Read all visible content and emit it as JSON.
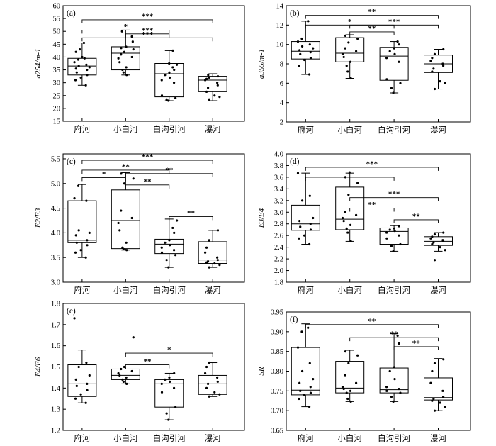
{
  "chart_data": [
    {
      "type": "box",
      "panel": "(a)",
      "ylabel": "a254/m-1",
      "ylim": [
        15,
        60
      ],
      "yticks": [
        15,
        20,
        25,
        30,
        35,
        40,
        45,
        50,
        55,
        60
      ],
      "categories": [
        "府河",
        "小白河",
        "白沟引河",
        "瀑河"
      ],
      "boxes": [
        {
          "min": 29,
          "q1": 33,
          "median": 36.5,
          "q3": 39.5,
          "max": 45.5,
          "points": [
            29,
            31,
            32,
            33,
            34,
            35,
            35.5,
            36,
            36.5,
            37,
            38,
            39,
            39.5,
            40,
            42,
            43,
            45.5
          ]
        },
        {
          "min": 33,
          "q1": 35,
          "median": 41.5,
          "q3": 44,
          "max": 50.5,
          "points": [
            33,
            34,
            35,
            36,
            38,
            39.5,
            40,
            41,
            42,
            43,
            43.5,
            44,
            46,
            48,
            50
          ]
        },
        {
          "min": 23,
          "q1": 24.5,
          "median": 33.5,
          "q3": 37.5,
          "max": 42.5,
          "points": [
            23,
            23.5,
            24,
            25,
            30,
            31,
            32,
            33,
            34,
            35,
            36,
            37,
            37.5,
            42.5
          ]
        },
        {
          "min": 23,
          "q1": 26.5,
          "median": 31,
          "q3": 32.5,
          "max": 33.5,
          "points": [
            23.5,
            24.5,
            25,
            26.5,
            28,
            29,
            30,
            31,
            31.5,
            32,
            32.5,
            33
          ]
        }
      ],
      "significance": [
        {
          "from": 1,
          "to": 4,
          "label": "***",
          "y": 54.5
        },
        {
          "from": 1,
          "to": 3,
          "label": "*",
          "y": 50.5
        },
        {
          "from": 2,
          "to": 3,
          "label": "***",
          "y": 49
        },
        {
          "from": 1,
          "to": 4,
          "label": "***",
          "y": 47.5
        }
      ]
    },
    {
      "type": "box",
      "panel": "(b)",
      "ylabel": "a355/m-1",
      "ylim": [
        2,
        14
      ],
      "yticks": [
        2,
        4,
        6,
        8,
        10,
        12,
        14
      ],
      "categories": [
        "府河",
        "小白河",
        "白沟引河",
        "瀑河"
      ],
      "boxes": [
        {
          "min": 6.9,
          "q1": 8.5,
          "median": 9.3,
          "q3": 10.3,
          "max": 12.4,
          "points": [
            6.9,
            7.8,
            8.4,
            8.6,
            9.0,
            9.2,
            9.4,
            9.6,
            9.8,
            10.0,
            10.3,
            10.6,
            12.4
          ]
        },
        {
          "min": 6.5,
          "q1": 8.2,
          "median": 9.1,
          "q3": 10.7,
          "max": 11.0,
          "points": [
            6.5,
            7.2,
            7.8,
            8.2,
            8.7,
            9.0,
            9.3,
            9.6,
            10.2,
            10.6,
            10.9
          ]
        },
        {
          "min": 5.0,
          "q1": 6.3,
          "median": 8.8,
          "q3": 9.7,
          "max": 10.3,
          "points": [
            5.0,
            5.5,
            6.0,
            6.4,
            8.2,
            8.6,
            9.0,
            9.3,
            9.6,
            10.0,
            10.3
          ]
        },
        {
          "min": 5.4,
          "q1": 7.1,
          "median": 8.0,
          "q3": 8.9,
          "max": 9.5,
          "points": [
            5.4,
            6.0,
            6.2,
            7.2,
            7.5,
            7.8,
            8.0,
            8.3,
            8.6,
            9.0,
            9.5
          ]
        }
      ],
      "significance": [
        {
          "from": 1,
          "to": 4,
          "label": "**",
          "y": 13.0
        },
        {
          "from": 1,
          "to": 3,
          "label": "*",
          "y": 12.0
        },
        {
          "from": 2,
          "to": 4,
          "label": "***",
          "y": 12.0
        },
        {
          "from": 2,
          "to": 3,
          "label": "**",
          "y": 11.3
        }
      ]
    },
    {
      "type": "box",
      "panel": "(c)",
      "ylabel": "E2/E3",
      "ylim": [
        3.0,
        5.6
      ],
      "yticks": [
        3.0,
        3.5,
        4.0,
        4.5,
        5.0,
        5.5
      ],
      "categories": [
        "府河",
        "小白河",
        "白沟引河",
        "瀑河"
      ],
      "boxes": [
        {
          "min": 3.5,
          "q1": 3.8,
          "median": 3.85,
          "q3": 4.65,
          "max": 4.98,
          "points": [
            3.5,
            3.6,
            3.65,
            3.75,
            3.8,
            3.85,
            3.95,
            4.0,
            4.05,
            4.65,
            4.7,
            4.95
          ]
        },
        {
          "min": 3.65,
          "q1": 3.68,
          "median": 4.25,
          "q3": 4.87,
          "max": 5.22,
          "points": [
            3.65,
            3.67,
            3.7,
            3.8,
            4.05,
            4.2,
            4.3,
            4.45,
            5.0,
            5.1,
            5.2
          ]
        },
        {
          "min": 3.3,
          "q1": 3.58,
          "median": 3.77,
          "q3": 3.87,
          "max": 4.28,
          "points": [
            3.3,
            3.45,
            3.55,
            3.6,
            3.65,
            3.7,
            3.75,
            3.8,
            3.85,
            4.0,
            4.1,
            4.25
          ]
        },
        {
          "min": 3.3,
          "q1": 3.38,
          "median": 3.45,
          "q3": 3.82,
          "max": 4.05,
          "points": [
            3.3,
            3.35,
            3.38,
            3.4,
            3.42,
            3.45,
            3.5,
            3.6,
            3.7,
            3.85,
            4.05
          ]
        }
      ],
      "significance": [
        {
          "from": 1,
          "to": 4,
          "label": "***",
          "y": 5.47
        },
        {
          "from": 1,
          "to": 3,
          "label": "**",
          "y": 5.27
        },
        {
          "from": 2,
          "to": 4,
          "label": "**",
          "y": 5.2
        },
        {
          "from": 1,
          "to": 2,
          "label": "*",
          "y": 5.12
        },
        {
          "from": 2,
          "to": 3,
          "label": "**",
          "y": 4.97
        },
        {
          "from": 3,
          "to": 4,
          "label": "**",
          "y": 4.33
        }
      ]
    },
    {
      "type": "box",
      "panel": "(d)",
      "ylabel": "E3/E4",
      "ylim": [
        1.8,
        4.0
      ],
      "yticks": [
        1.8,
        2.0,
        2.2,
        2.4,
        2.6,
        2.8,
        3.0,
        3.2,
        3.4,
        3.6,
        3.8,
        4.0
      ],
      "categories": [
        "府河",
        "小白河",
        "白沟引河",
        "瀑河"
      ],
      "boxes": [
        {
          "min": 2.45,
          "q1": 2.69,
          "median": 2.8,
          "q3": 3.12,
          "max": 3.67,
          "points": [
            2.45,
            2.55,
            2.6,
            2.7,
            2.75,
            2.8,
            2.85,
            2.9,
            3.2,
            3.28,
            3.67
          ]
        },
        {
          "min": 2.5,
          "q1": 2.7,
          "median": 2.88,
          "q3": 3.43,
          "max": 3.67,
          "points": [
            2.5,
            2.65,
            2.72,
            2.78,
            2.85,
            2.9,
            2.95,
            3.0,
            3.3,
            3.5,
            3.6
          ]
        },
        {
          "min": 2.33,
          "q1": 2.45,
          "median": 2.67,
          "q3": 2.73,
          "max": 2.77,
          "points": [
            2.33,
            2.42,
            2.45,
            2.55,
            2.6,
            2.65,
            2.68,
            2.7,
            2.72,
            2.76
          ]
        },
        {
          "min": 2.33,
          "q1": 2.43,
          "median": 2.5,
          "q3": 2.58,
          "max": 2.65,
          "points": [
            2.18,
            2.35,
            2.4,
            2.45,
            2.48,
            2.5,
            2.52,
            2.55,
            2.58,
            2.62,
            2.65
          ]
        }
      ],
      "significance": [
        {
          "from": 1,
          "to": 4,
          "label": "***",
          "y": 3.77
        },
        {
          "from": 1,
          "to": 3,
          "label": "*",
          "y": 3.6
        },
        {
          "from": 2,
          "to": 4,
          "label": "***",
          "y": 3.25
        },
        {
          "from": 2,
          "to": 3,
          "label": "**",
          "y": 3.07
        },
        {
          "from": 3,
          "to": 4,
          "label": "**",
          "y": 2.87
        }
      ]
    },
    {
      "type": "box",
      "panel": "(e)",
      "ylabel": "E4/E6",
      "ylim": [
        1.2,
        1.8
      ],
      "yticks": [
        1.2,
        1.3,
        1.4,
        1.5,
        1.6,
        1.7,
        1.8
      ],
      "categories": [
        "府河",
        "小白河",
        "白沟引河",
        "瀑河"
      ],
      "boxes": [
        {
          "min": 1.33,
          "q1": 1.36,
          "median": 1.42,
          "q3": 1.51,
          "max": 1.58,
          "points": [
            1.33,
            1.35,
            1.37,
            1.39,
            1.41,
            1.42,
            1.44,
            1.46,
            1.5,
            1.52,
            1.73
          ]
        },
        {
          "min": 1.42,
          "q1": 1.44,
          "median": 1.46,
          "q3": 1.49,
          "max": 1.5,
          "points": [
            1.42,
            1.43,
            1.44,
            1.45,
            1.46,
            1.47,
            1.48,
            1.49,
            1.5,
            1.64
          ]
        },
        {
          "min": 1.25,
          "q1": 1.31,
          "median": 1.42,
          "q3": 1.44,
          "max": 1.47,
          "points": [
            1.25,
            1.28,
            1.31,
            1.38,
            1.4,
            1.42,
            1.43,
            1.44,
            1.45,
            1.47
          ]
        },
        {
          "min": 1.36,
          "q1": 1.37,
          "median": 1.42,
          "q3": 1.46,
          "max": 1.52,
          "points": [
            1.36,
            1.37,
            1.38,
            1.4,
            1.42,
            1.43,
            1.45,
            1.47,
            1.5,
            1.52
          ]
        }
      ],
      "significance": [
        {
          "from": 2,
          "to": 4,
          "label": "*",
          "y": 1.565
        },
        {
          "from": 2,
          "to": 3,
          "label": "**",
          "y": 1.51
        }
      ]
    },
    {
      "type": "box",
      "panel": "(f)",
      "ylabel": "SR",
      "ylim": [
        0.65,
        0.95
      ],
      "yticks": [
        0.65,
        0.7,
        0.75,
        0.8,
        0.85,
        0.9,
        0.95
      ],
      "categories": [
        "府河",
        "小白河",
        "白沟引河",
        "瀑河"
      ],
      "boxes": [
        {
          "min": 0.71,
          "q1": 0.74,
          "median": 0.752,
          "q3": 0.86,
          "max": 0.92,
          "points": [
            0.71,
            0.73,
            0.74,
            0.745,
            0.75,
            0.76,
            0.77,
            0.78,
            0.8,
            0.82,
            0.86,
            0.9,
            0.91
          ]
        },
        {
          "min": 0.723,
          "q1": 0.745,
          "median": 0.757,
          "q3": 0.825,
          "max": 0.853,
          "points": [
            0.723,
            0.73,
            0.745,
            0.75,
            0.755,
            0.76,
            0.77,
            0.79,
            0.82,
            0.84,
            0.85
          ]
        },
        {
          "min": 0.723,
          "q1": 0.745,
          "median": 0.753,
          "q3": 0.808,
          "max": 0.895,
          "points": [
            0.723,
            0.735,
            0.745,
            0.75,
            0.755,
            0.76,
            0.78,
            0.8,
            0.81,
            0.87,
            0.89
          ]
        },
        {
          "min": 0.7,
          "q1": 0.727,
          "median": 0.733,
          "q3": 0.783,
          "max": 0.832,
          "points": [
            0.7,
            0.71,
            0.72,
            0.725,
            0.73,
            0.735,
            0.75,
            0.77,
            0.8,
            0.82,
            0.83
          ]
        }
      ],
      "significance": [
        {
          "from": 1,
          "to": 4,
          "label": "**",
          "y": 0.918
        },
        {
          "from": 2,
          "to": 4,
          "label": "**",
          "y": 0.885
        },
        {
          "from": 3,
          "to": 4,
          "label": "**",
          "y": 0.862
        }
      ]
    }
  ]
}
